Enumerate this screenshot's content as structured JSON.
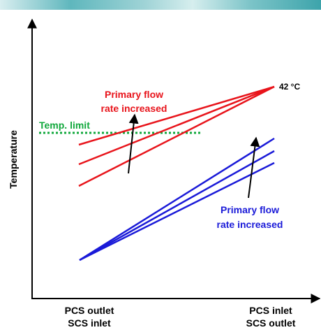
{
  "y_axis_label": "Temperature",
  "x_axis": {
    "left_label_line1": "PCS outlet",
    "left_label_line2": "SCS inlet",
    "right_label_line1": "PCS inlet",
    "right_label_line2": "SCS outlet"
  },
  "annotations": {
    "top_value": "42 °C",
    "temp_limit": "Temp. limit",
    "red_arrow_label_line1": "Primary flow",
    "red_arrow_label_line2": "rate increased",
    "blue_arrow_label_line1": "Primary flow",
    "blue_arrow_label_line2": "rate increased"
  },
  "colors": {
    "red_lines": "#e8141b",
    "blue_lines": "#1a1ad8",
    "temp_limit_line": "#11a83c",
    "axes": "#000000"
  }
}
